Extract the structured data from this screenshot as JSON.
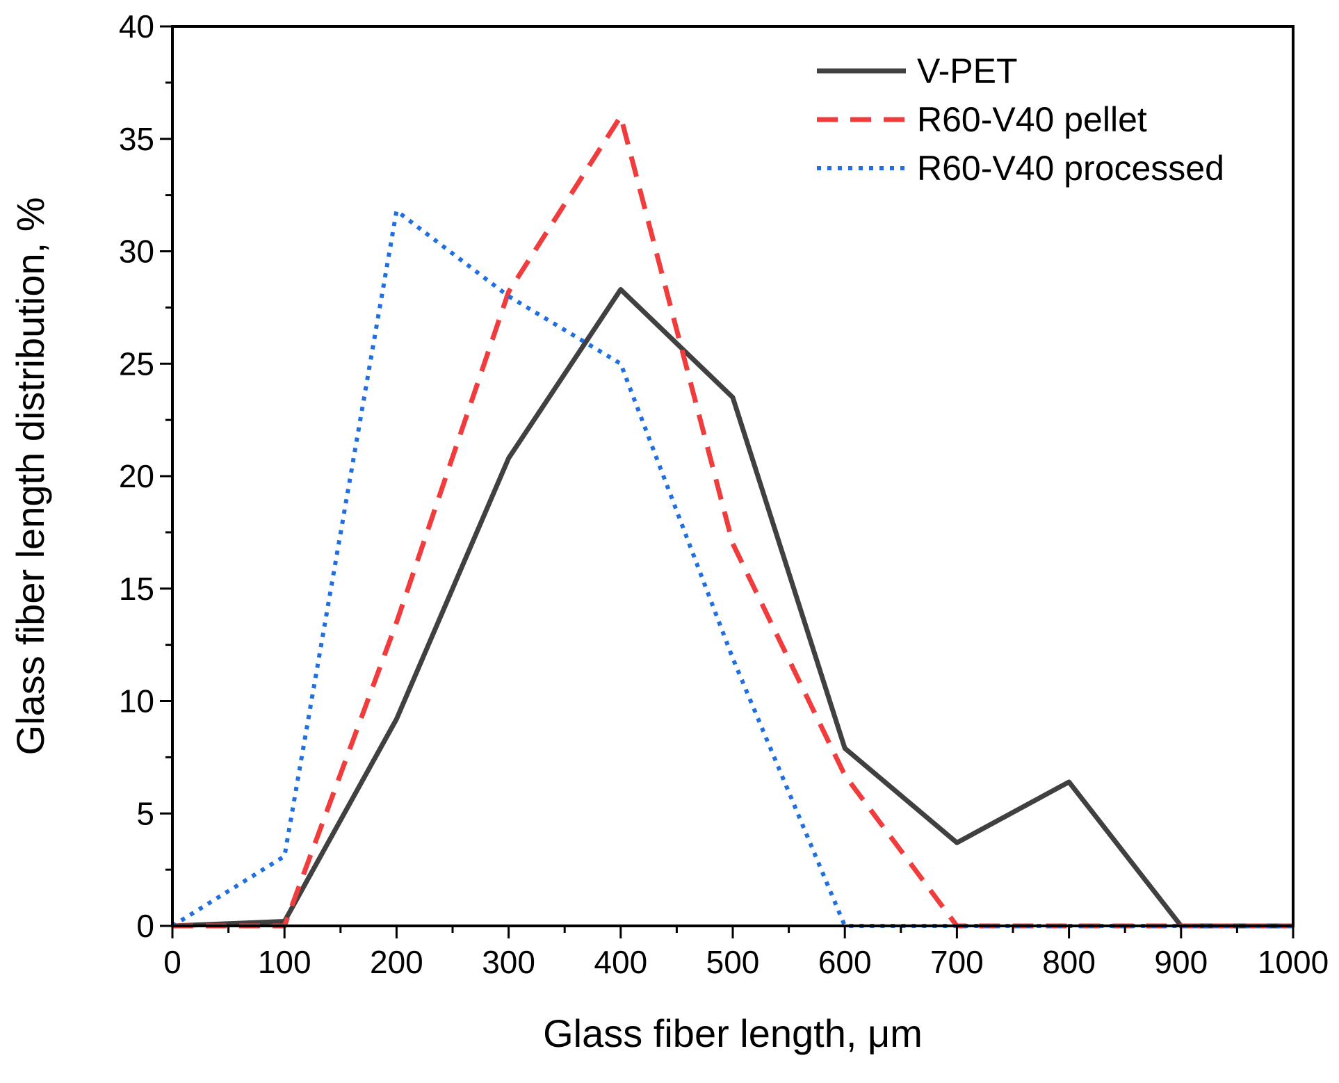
{
  "chart_data": {
    "type": "line",
    "xlabel": "Glass fiber length, μm",
    "ylabel": "Glass fiber length distribution, %",
    "xlim": [
      0,
      1000
    ],
    "ylim": [
      0,
      40
    ],
    "xticks": [
      0,
      100,
      200,
      300,
      400,
      500,
      600,
      700,
      800,
      900,
      1000
    ],
    "yticks": [
      0,
      5,
      10,
      15,
      20,
      25,
      30,
      35,
      40
    ],
    "grid": false,
    "legend_position": "top-right",
    "series": [
      {
        "name": "V-PET",
        "color": "#404040",
        "style": "solid",
        "x": [
          0,
          100,
          200,
          300,
          400,
          500,
          600,
          700,
          800,
          900,
          1000
        ],
        "y": [
          0,
          0.2,
          9.2,
          20.8,
          28.3,
          23.5,
          7.9,
          3.7,
          6.4,
          0,
          0
        ]
      },
      {
        "name": "R60-V40 pellet",
        "color": "#f03c3c",
        "style": "dashed",
        "x": [
          0,
          100,
          200,
          300,
          400,
          500,
          600,
          700,
          800,
          900,
          1000
        ],
        "y": [
          0,
          0,
          13.5,
          28.2,
          36.0,
          17.0,
          6.7,
          0,
          0,
          0,
          0
        ]
      },
      {
        "name": "R60-V40 processed",
        "color": "#1f6fe0",
        "style": "dotted",
        "x": [
          0,
          100,
          200,
          300,
          400,
          500,
          600,
          700,
          800,
          900,
          1000
        ],
        "y": [
          0,
          3.1,
          31.8,
          28.0,
          25.0,
          11.9,
          0,
          0,
          0,
          0,
          0
        ]
      }
    ]
  }
}
